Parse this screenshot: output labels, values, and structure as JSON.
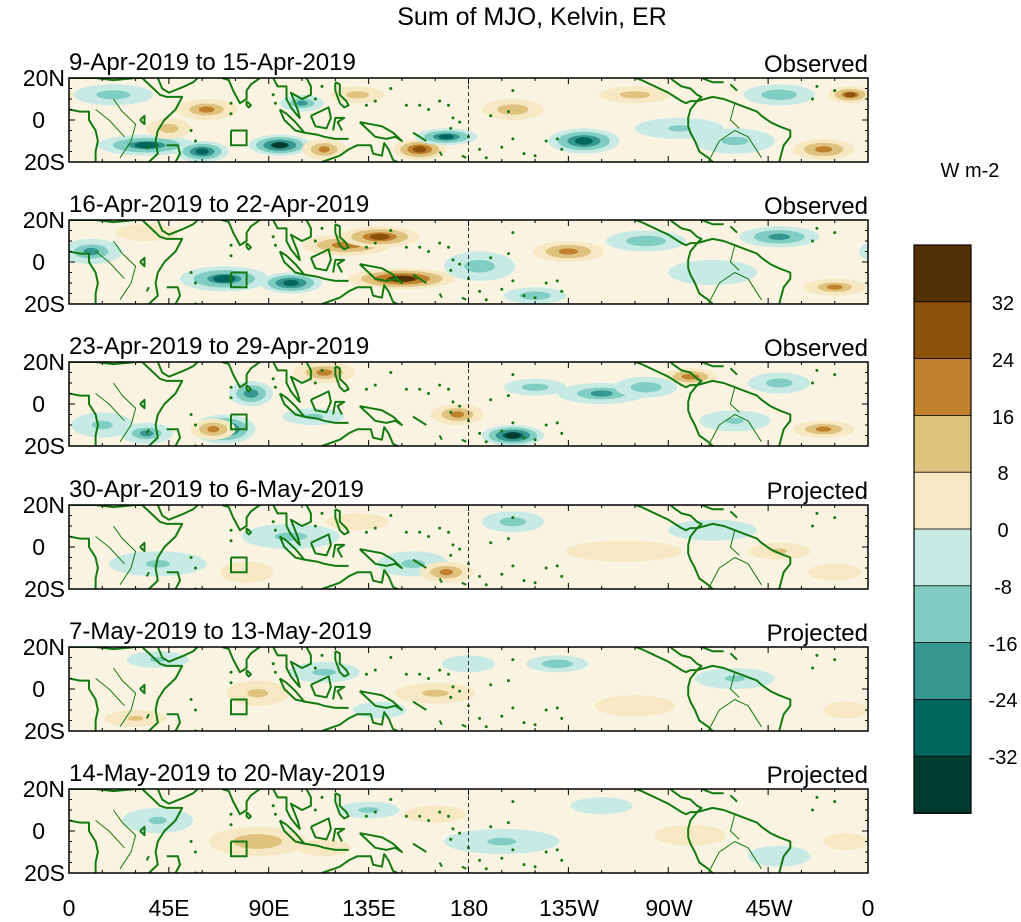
{
  "figure": {
    "title": "Sum of MJO, Kelvin, ER",
    "xticks": [
      "0",
      "45E",
      "90E",
      "135E",
      "180",
      "135W",
      "90W",
      "45W",
      "0"
    ],
    "yticks": [
      "20N",
      "0",
      "20S"
    ],
    "lat_range": [
      -20,
      20
    ],
    "lon_range": [
      0,
      360
    ],
    "dateline_lon": 180
  },
  "colorbar": {
    "unit": "W m-2",
    "labels": [
      "32",
      "24",
      "16",
      "8",
      "0",
      "-8",
      "-16",
      "-24",
      "-32"
    ],
    "colors": [
      "#543005",
      "#8c510a",
      "#bf812d",
      "#dfc27d",
      "#f6e8c3",
      "#c7eae5",
      "#80cdc1",
      "#35978f",
      "#01665e",
      "#003c30"
    ]
  },
  "colors": {
    "coastline": "#137a12",
    "frame": "#000000",
    "background": "#ffffff"
  },
  "panels": [
    {
      "dates": "9-Apr-2019 to 15-Apr-2019",
      "status": "Observed",
      "anomalies": [
        [
          35,
          -12,
          22,
          5,
          -26
        ],
        [
          60,
          -15,
          12,
          5,
          -30
        ],
        [
          95,
          -12,
          14,
          5,
          -34
        ],
        [
          115,
          -14,
          10,
          5,
          20
        ],
        [
          158,
          -14,
          12,
          5,
          30
        ],
        [
          170,
          -8,
          14,
          4,
          -28
        ],
        [
          232,
          -10,
          16,
          6,
          -30
        ],
        [
          200,
          5,
          14,
          5,
          16
        ],
        [
          62,
          5,
          14,
          5,
          18
        ],
        [
          130,
          12,
          12,
          4,
          14
        ],
        [
          105,
          8,
          10,
          4,
          -18
        ],
        [
          255,
          12,
          16,
          4,
          14
        ],
        [
          320,
          12,
          16,
          5,
          -16
        ],
        [
          340,
          -14,
          14,
          5,
          22
        ],
        [
          300,
          -10,
          18,
          6,
          -12
        ],
        [
          20,
          12,
          18,
          5,
          -14
        ],
        [
          45,
          -4,
          10,
          5,
          14
        ],
        [
          352,
          12,
          10,
          4,
          26
        ],
        [
          275,
          -4,
          20,
          5,
          -10
        ]
      ]
    },
    {
      "dates": "16-Apr-2019 to 22-Apr-2019",
      "status": "Observed",
      "anomalies": [
        [
          70,
          -8,
          20,
          6,
          -26
        ],
        [
          100,
          -10,
          14,
          5,
          -32
        ],
        [
          125,
          8,
          20,
          5,
          24
        ],
        [
          140,
          12,
          18,
          5,
          28
        ],
        [
          150,
          -8,
          24,
          5,
          34
        ],
        [
          185,
          -2,
          16,
          7,
          -14
        ],
        [
          225,
          5,
          16,
          5,
          22
        ],
        [
          10,
          5,
          14,
          6,
          -18
        ],
        [
          260,
          10,
          18,
          5,
          -16
        ],
        [
          320,
          12,
          18,
          5,
          -22
        ],
        [
          345,
          -12,
          14,
          4,
          18
        ],
        [
          210,
          -16,
          14,
          4,
          -16
        ],
        [
          35,
          14,
          14,
          4,
          8
        ],
        [
          290,
          -5,
          20,
          6,
          -8
        ]
      ]
    },
    {
      "dates": "23-Apr-2019 to 29-Apr-2019",
      "status": "Observed",
      "anomalies": [
        [
          70,
          -12,
          14,
          7,
          -32
        ],
        [
          82,
          5,
          10,
          6,
          -24
        ],
        [
          65,
          -12,
          10,
          5,
          22
        ],
        [
          35,
          -14,
          12,
          5,
          -18
        ],
        [
          115,
          15,
          14,
          5,
          20
        ],
        [
          200,
          -15,
          14,
          5,
          -36
        ],
        [
          175,
          -5,
          12,
          5,
          20
        ],
        [
          210,
          8,
          14,
          4,
          -14
        ],
        [
          240,
          5,
          20,
          5,
          -18
        ],
        [
          280,
          13,
          12,
          4,
          24
        ],
        [
          260,
          8,
          14,
          5,
          -16
        ],
        [
          320,
          10,
          14,
          5,
          -14
        ],
        [
          340,
          -12,
          14,
          4,
          20
        ],
        [
          15,
          -10,
          14,
          6,
          -12
        ],
        [
          110,
          -6,
          14,
          4,
          -12
        ],
        [
          300,
          -8,
          16,
          5,
          -10
        ]
      ]
    },
    {
      "dates": "30-Apr-2019 to 6-May-2019",
      "status": "Projected",
      "anomalies": [
        [
          100,
          5,
          22,
          6,
          -12
        ],
        [
          155,
          -8,
          16,
          6,
          -12
        ],
        [
          170,
          -12,
          12,
          5,
          20
        ],
        [
          200,
          12,
          14,
          5,
          -14
        ],
        [
          250,
          -2,
          26,
          5,
          8
        ],
        [
          320,
          -2,
          14,
          4,
          10
        ],
        [
          40,
          -8,
          22,
          6,
          -10
        ],
        [
          80,
          -12,
          12,
          5,
          8
        ],
        [
          290,
          8,
          20,
          5,
          -8
        ],
        [
          345,
          -12,
          12,
          4,
          8
        ],
        [
          130,
          12,
          14,
          4,
          6
        ]
      ]
    },
    {
      "dates": "7-May-2019 to 13-May-2019",
      "status": "Projected",
      "anomalies": [
        [
          85,
          -2,
          14,
          6,
          12
        ],
        [
          115,
          8,
          16,
          5,
          -12
        ],
        [
          165,
          -2,
          18,
          5,
          12
        ],
        [
          220,
          12,
          14,
          4,
          -16
        ],
        [
          40,
          14,
          14,
          4,
          -10
        ],
        [
          30,
          -14,
          14,
          4,
          10
        ],
        [
          300,
          5,
          18,
          5,
          -10
        ],
        [
          255,
          -8,
          18,
          5,
          6
        ],
        [
          180,
          12,
          12,
          4,
          -8
        ],
        [
          350,
          -10,
          10,
          4,
          8
        ],
        [
          140,
          -10,
          12,
          4,
          -8
        ]
      ]
    },
    {
      "dates": "14-May-2019 to 20-May-2019",
      "status": "Projected",
      "anomalies": [
        [
          85,
          -5,
          22,
          7,
          16
        ],
        [
          40,
          5,
          16,
          6,
          -10
        ],
        [
          135,
          10,
          14,
          4,
          -12
        ],
        [
          195,
          -5,
          26,
          6,
          -10
        ],
        [
          240,
          12,
          14,
          4,
          -8
        ],
        [
          280,
          -2,
          16,
          5,
          8
        ],
        [
          320,
          -12,
          14,
          5,
          -8
        ],
        [
          165,
          8,
          14,
          4,
          6
        ],
        [
          115,
          -8,
          12,
          4,
          8
        ],
        [
          350,
          -5,
          10,
          4,
          6
        ]
      ]
    }
  ]
}
